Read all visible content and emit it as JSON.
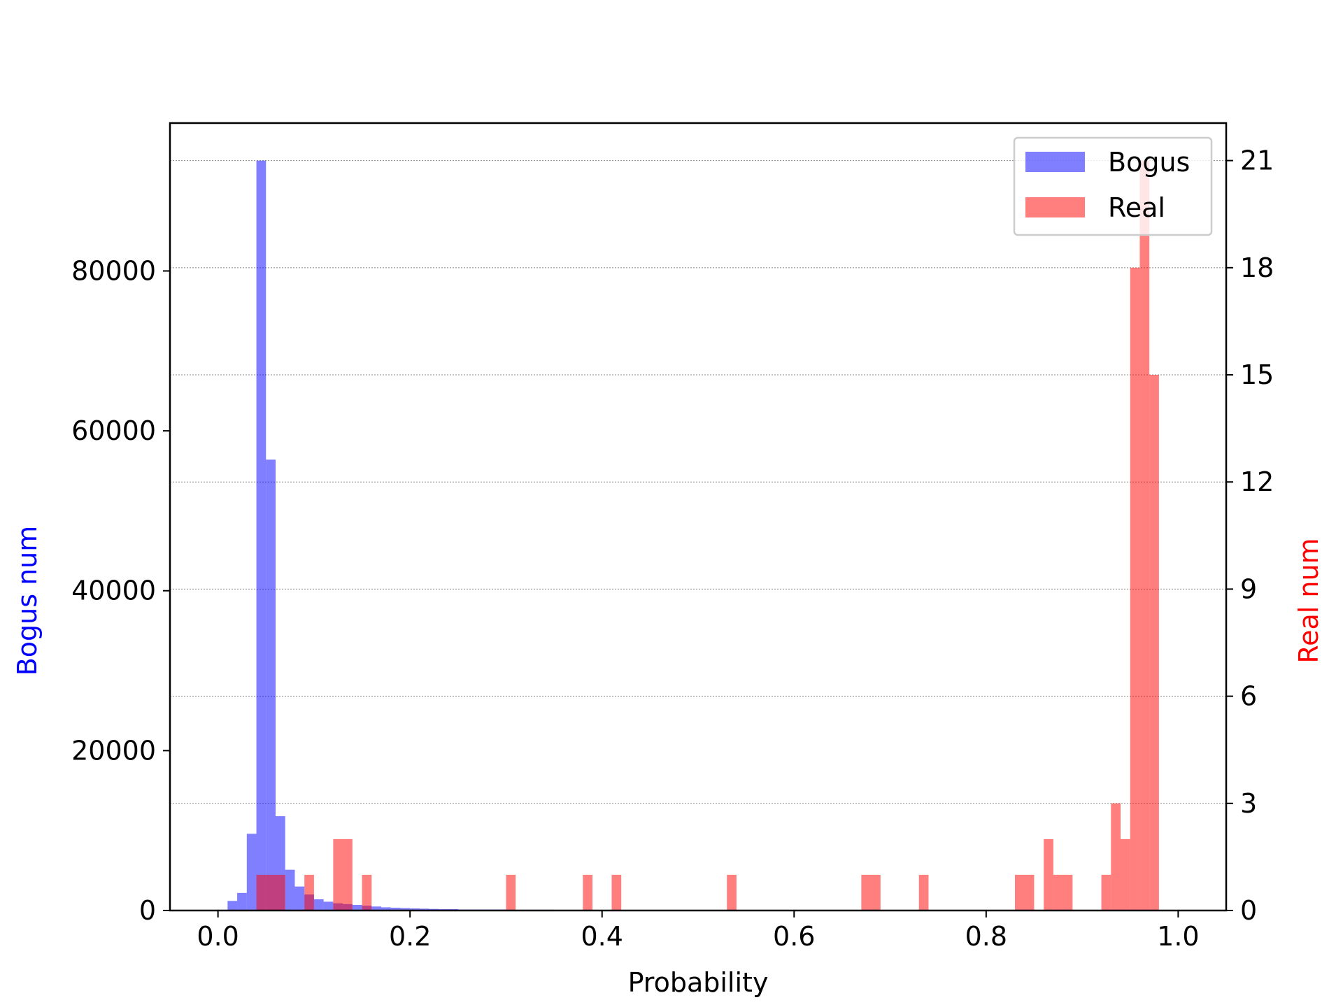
{
  "chart_data": {
    "type": "bar",
    "title": "",
    "xlabel": "Probability",
    "ylabel_left": "Bogus num",
    "ylabel_right": "Real num",
    "xlim": [
      -0.05,
      1.05
    ],
    "xticks": [
      0.0,
      0.2,
      0.4,
      0.6,
      0.8,
      1.0
    ],
    "xtick_labels": [
      "0.0",
      "0.2",
      "0.4",
      "0.6",
      "0.8",
      "1.0"
    ],
    "ylim_left": [
      0,
      98500
    ],
    "yticks_left": [
      0,
      20000,
      40000,
      60000,
      80000
    ],
    "ytick_labels_left": [
      "0",
      "20000",
      "40000",
      "60000",
      "80000"
    ],
    "ylim_right": [
      0,
      22.05
    ],
    "yticks_right": [
      0,
      3,
      6,
      9,
      12,
      15,
      18,
      21
    ],
    "ytick_labels_right": [
      "0",
      "3",
      "6",
      "9",
      "12",
      "15",
      "18",
      "21"
    ],
    "grid": "horizontal dotted at right-axis ticks",
    "legend_placement": "top-right",
    "series": [
      {
        "name": "Bogus",
        "axis": "left",
        "color": "#0000ff",
        "alpha": 0.5,
        "bins": [
          {
            "x0": 0.01,
            "x1": 0.02,
            "value": 1200
          },
          {
            "x0": 0.02,
            "x1": 0.03,
            "value": 2200
          },
          {
            "x0": 0.03,
            "x1": 0.04,
            "value": 9600
          },
          {
            "x0": 0.04,
            "x1": 0.05,
            "value": 93800
          },
          {
            "x0": 0.05,
            "x1": 0.06,
            "value": 56400
          },
          {
            "x0": 0.06,
            "x1": 0.07,
            "value": 11800
          },
          {
            "x0": 0.07,
            "x1": 0.08,
            "value": 5100
          },
          {
            "x0": 0.08,
            "x1": 0.09,
            "value": 3000
          },
          {
            "x0": 0.09,
            "x1": 0.1,
            "value": 2000
          },
          {
            "x0": 0.1,
            "x1": 0.11,
            "value": 1400
          },
          {
            "x0": 0.11,
            "x1": 0.12,
            "value": 1100
          },
          {
            "x0": 0.12,
            "x1": 0.13,
            "value": 900
          },
          {
            "x0": 0.13,
            "x1": 0.14,
            "value": 800
          },
          {
            "x0": 0.14,
            "x1": 0.15,
            "value": 700
          },
          {
            "x0": 0.15,
            "x1": 0.16,
            "value": 600
          },
          {
            "x0": 0.16,
            "x1": 0.17,
            "value": 500
          },
          {
            "x0": 0.17,
            "x1": 0.18,
            "value": 400
          },
          {
            "x0": 0.18,
            "x1": 0.19,
            "value": 350
          },
          {
            "x0": 0.19,
            "x1": 0.2,
            "value": 300
          },
          {
            "x0": 0.2,
            "x1": 0.21,
            "value": 260
          },
          {
            "x0": 0.21,
            "x1": 0.22,
            "value": 230
          },
          {
            "x0": 0.22,
            "x1": 0.23,
            "value": 200
          },
          {
            "x0": 0.23,
            "x1": 0.25,
            "value": 170
          },
          {
            "x0": 0.25,
            "x1": 0.3,
            "value": 130
          },
          {
            "x0": 0.3,
            "x1": 0.35,
            "value": 100
          },
          {
            "x0": 0.35,
            "x1": 0.4,
            "value": 70
          },
          {
            "x0": 0.4,
            "x1": 0.5,
            "value": 40
          },
          {
            "x0": 0.5,
            "x1": 0.7,
            "value": 20
          },
          {
            "x0": 0.7,
            "x1": 0.93,
            "value": 10
          },
          {
            "x0": 0.93,
            "x1": 0.98,
            "value": 20
          }
        ]
      },
      {
        "name": "Real",
        "axis": "right",
        "color": "#ff0000",
        "alpha": 0.5,
        "bins": [
          {
            "x0": 0.04,
            "x1": 0.07,
            "value": 1
          },
          {
            "x0": 0.09,
            "x1": 0.1,
            "value": 1
          },
          {
            "x0": 0.12,
            "x1": 0.14,
            "value": 2
          },
          {
            "x0": 0.15,
            "x1": 0.16,
            "value": 1
          },
          {
            "x0": 0.3,
            "x1": 0.31,
            "value": 1
          },
          {
            "x0": 0.38,
            "x1": 0.39,
            "value": 1
          },
          {
            "x0": 0.41,
            "x1": 0.42,
            "value": 1
          },
          {
            "x0": 0.53,
            "x1": 0.54,
            "value": 1
          },
          {
            "x0": 0.67,
            "x1": 0.69,
            "value": 1
          },
          {
            "x0": 0.73,
            "x1": 0.74,
            "value": 1
          },
          {
            "x0": 0.83,
            "x1": 0.85,
            "value": 1
          },
          {
            "x0": 0.86,
            "x1": 0.87,
            "value": 2
          },
          {
            "x0": 0.87,
            "x1": 0.89,
            "value": 1
          },
          {
            "x0": 0.92,
            "x1": 0.93,
            "value": 1
          },
          {
            "x0": 0.93,
            "x1": 0.94,
            "value": 3
          },
          {
            "x0": 0.94,
            "x1": 0.95,
            "value": 2
          },
          {
            "x0": 0.95,
            "x1": 0.96,
            "value": 18
          },
          {
            "x0": 0.96,
            "x1": 0.97,
            "value": 21
          },
          {
            "x0": 0.97,
            "x1": 0.98,
            "value": 15
          }
        ]
      }
    ]
  },
  "legend": {
    "items": [
      {
        "label": "Bogus",
        "color": "#0000ff"
      },
      {
        "label": "Real",
        "color": "#ff0000"
      }
    ]
  },
  "colors": {
    "left_label": "#0000ff",
    "right_label": "#ff0000",
    "axis": "#000000",
    "grid": "#888888"
  }
}
